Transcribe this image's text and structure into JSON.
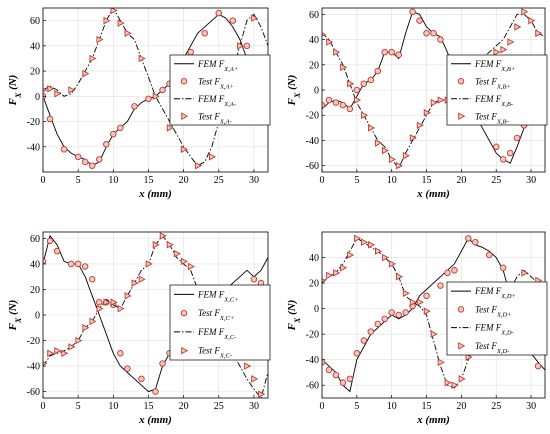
{
  "colors": {
    "line": "#000000",
    "marker": "#c0392b",
    "marker_fill": "#f4c7c3",
    "grid": "#e0e0e0"
  },
  "chart_data": [
    {
      "type": "line",
      "xlabel": "x (mm)",
      "ylabel": "F_X (N)",
      "xlim": [
        0,
        32
      ],
      "ylim": [
        -60,
        70
      ],
      "xticks": [
        0,
        5,
        10,
        15,
        20,
        25,
        30
      ],
      "yticks": [
        -40,
        -20,
        0,
        20,
        40,
        60
      ],
      "grid": true,
      "legend_position": "middle-right",
      "series": [
        {
          "name": "FEM F_X,A+",
          "marker": "none",
          "dash": "solid",
          "x": [
            0,
            1,
            2,
            3,
            4,
            5,
            6,
            7,
            8,
            9,
            10,
            11,
            12,
            13,
            14,
            15,
            16,
            17,
            18,
            19,
            20,
            21,
            22,
            23,
            24,
            25,
            26,
            27,
            28,
            29,
            30,
            31,
            32
          ],
          "y": [
            0,
            -15,
            -30,
            -40,
            -45,
            -48,
            -50,
            -55,
            -52,
            -40,
            -30,
            -25,
            -20,
            -10,
            -5,
            -2,
            0,
            5,
            10,
            15,
            30,
            40,
            50,
            55,
            60,
            65,
            62,
            55,
            45,
            30,
            20,
            10,
            -5
          ]
        },
        {
          "name": "Test F_X,A+",
          "marker": "circle",
          "dash": "none",
          "x": [
            0,
            1,
            3,
            5,
            6,
            7,
            8,
            9,
            10,
            11,
            13,
            15,
            17,
            18,
            19,
            21,
            23,
            25,
            27,
            29,
            31
          ],
          "y": [
            0,
            -18,
            -42,
            -48,
            -52,
            -55,
            -50,
            -38,
            -30,
            -25,
            -8,
            -2,
            5,
            10,
            15,
            35,
            50,
            66,
            60,
            40,
            10
          ]
        },
        {
          "name": "FEM F_X,A-",
          "marker": "none",
          "dash": "dashdot",
          "x": [
            0,
            1,
            2,
            3,
            4,
            5,
            6,
            7,
            8,
            9,
            10,
            11,
            12,
            13,
            14,
            15,
            16,
            17,
            18,
            19,
            20,
            21,
            22,
            23,
            24,
            25,
            26,
            27,
            28,
            29,
            30,
            31,
            32
          ],
          "y": [
            5,
            8,
            5,
            0,
            2,
            10,
            20,
            30,
            45,
            60,
            70,
            60,
            50,
            45,
            30,
            15,
            0,
            -10,
            -20,
            -30,
            -40,
            -48,
            -55,
            -52,
            -40,
            -20,
            0,
            20,
            40,
            60,
            65,
            55,
            40
          ]
        },
        {
          "name": "Test F_X,A-",
          "marker": "triangle",
          "dash": "none",
          "x": [
            0,
            1,
            2,
            4,
            6,
            7,
            8,
            9,
            10,
            11,
            12,
            14,
            16,
            18,
            20,
            22,
            24,
            26,
            28,
            30
          ],
          "y": [
            5,
            6,
            2,
            5,
            18,
            30,
            45,
            60,
            68,
            58,
            50,
            30,
            0,
            -25,
            -42,
            -55,
            -48,
            0,
            40,
            62
          ]
        }
      ]
    },
    {
      "type": "line",
      "xlabel": "x (mm)",
      "ylabel": "F_X (N)",
      "xlim": [
        0,
        32
      ],
      "ylim": [
        -65,
        65
      ],
      "xticks": [
        0,
        5,
        10,
        15,
        20,
        25,
        30
      ],
      "yticks": [
        -60,
        -40,
        -20,
        0,
        20,
        40,
        60
      ],
      "grid": true,
      "legend_position": "middle-right",
      "series": [
        {
          "name": "FEM F_X,B+",
          "marker": "none",
          "dash": "solid",
          "x": [
            0,
            1,
            2,
            3,
            4,
            5,
            6,
            7,
            8,
            9,
            10,
            11,
            12,
            13,
            14,
            15,
            16,
            17,
            18,
            19,
            20,
            21,
            22,
            23,
            24,
            25,
            26,
            27,
            28,
            29,
            30,
            31,
            32
          ],
          "y": [
            -15,
            -10,
            -8,
            -10,
            -15,
            -5,
            5,
            8,
            15,
            30,
            30,
            25,
            45,
            62,
            60,
            50,
            45,
            42,
            30,
            15,
            0,
            -10,
            -20,
            -30,
            -40,
            -50,
            -55,
            -58,
            -45,
            -30,
            -25,
            -25,
            -15
          ]
        },
        {
          "name": "Test F_X,B+",
          "marker": "circle",
          "dash": "none",
          "x": [
            0,
            1,
            2,
            3,
            4,
            5,
            6,
            7,
            8,
            9,
            10,
            11,
            13,
            14,
            15,
            16,
            17,
            19,
            21,
            23,
            25,
            26,
            27,
            28,
            29,
            30,
            31
          ],
          "y": [
            -12,
            -8,
            -10,
            -12,
            -15,
            0,
            5,
            8,
            15,
            30,
            30,
            28,
            62,
            55,
            45,
            45,
            40,
            20,
            -8,
            -25,
            -45,
            -55,
            -50,
            -38,
            -28,
            -25,
            -25
          ]
        },
        {
          "name": "FEM F_X,B-",
          "marker": "none",
          "dash": "dashdot",
          "x": [
            0,
            1,
            2,
            3,
            4,
            5,
            6,
            7,
            8,
            9,
            10,
            11,
            12,
            13,
            14,
            15,
            16,
            17,
            18,
            19,
            20,
            21,
            22,
            23,
            24,
            25,
            26,
            27,
            28,
            29,
            30,
            31,
            32
          ],
          "y": [
            45,
            40,
            30,
            20,
            5,
            -10,
            -20,
            -30,
            -40,
            -45,
            -55,
            -62,
            -50,
            -40,
            -30,
            -20,
            -10,
            -8,
            -8,
            -8,
            0,
            15,
            20,
            25,
            30,
            35,
            40,
            50,
            60,
            60,
            55,
            45,
            42
          ]
        },
        {
          "name": "Test F_X,B-",
          "marker": "triangle",
          "dash": "none",
          "x": [
            0,
            1,
            2,
            3,
            4,
            5,
            6,
            7,
            8,
            9,
            10,
            11,
            12,
            13,
            14,
            15,
            16,
            17,
            18,
            19,
            20,
            21,
            23,
            25,
            26,
            27,
            28,
            29,
            30,
            31
          ],
          "y": [
            44,
            38,
            30,
            18,
            5,
            -8,
            -20,
            -30,
            -42,
            -48,
            -55,
            -60,
            -52,
            -38,
            -28,
            -18,
            -10,
            -8,
            -8,
            -7,
            0,
            12,
            22,
            30,
            32,
            38,
            50,
            62,
            55,
            45
          ]
        }
      ]
    },
    {
      "type": "line",
      "xlabel": "x (mm)",
      "ylabel": "F_X (N)",
      "xlim": [
        0,
        32
      ],
      "ylim": [
        -65,
        65
      ],
      "xticks": [
        0,
        5,
        10,
        15,
        20,
        25,
        30
      ],
      "yticks": [
        -60,
        -40,
        -20,
        0,
        20,
        40,
        60
      ],
      "grid": true,
      "legend_position": "bottom-right",
      "series": [
        {
          "name": "FEM F_X,C+",
          "marker": "none",
          "dash": "solid",
          "x": [
            0,
            1,
            2,
            3,
            4,
            5,
            6,
            7,
            8,
            9,
            10,
            11,
            12,
            13,
            14,
            15,
            16,
            17,
            18,
            19,
            20,
            21,
            22,
            23,
            24,
            25,
            26,
            27,
            28,
            29,
            30,
            31,
            32
          ],
          "y": [
            40,
            62,
            55,
            42,
            40,
            40,
            30,
            15,
            0,
            -15,
            -30,
            -40,
            -45,
            -50,
            -55,
            -60,
            -58,
            -40,
            -30,
            -25,
            -20,
            -15,
            0,
            5,
            10,
            15,
            20,
            25,
            30,
            35,
            30,
            35,
            45
          ]
        },
        {
          "name": "Test F_X,C+",
          "marker": "circle",
          "dash": "none",
          "x": [
            0,
            1,
            2,
            4,
            5,
            6,
            7,
            8,
            9,
            10,
            11,
            12,
            14,
            16,
            17,
            18,
            20,
            22,
            24,
            26,
            28,
            30,
            31
          ],
          "y": [
            42,
            58,
            50,
            40,
            40,
            38,
            28,
            10,
            10,
            8,
            -30,
            -42,
            -50,
            -60,
            -38,
            -30,
            -20,
            -5,
            5,
            12,
            20,
            28,
            25
          ]
        },
        {
          "name": "FEM F_X,C-",
          "marker": "none",
          "dash": "dashdot",
          "x": [
            0,
            1,
            2,
            3,
            4,
            5,
            6,
            7,
            8,
            9,
            10,
            11,
            12,
            13,
            14,
            15,
            16,
            17,
            18,
            19,
            20,
            21,
            22,
            23,
            24,
            25,
            26,
            27,
            28,
            29,
            30,
            31,
            32
          ],
          "y": [
            -40,
            -32,
            -30,
            -28,
            -25,
            -20,
            -10,
            -5,
            5,
            12,
            8,
            5,
            15,
            25,
            35,
            40,
            55,
            62,
            55,
            45,
            40,
            35,
            20,
            10,
            0,
            -10,
            -20,
            -30,
            -40,
            -50,
            -58,
            -65,
            -45
          ]
        },
        {
          "name": "Test F_X,C-",
          "marker": "triangle",
          "dash": "none",
          "x": [
            0,
            1,
            2,
            3,
            4,
            5,
            6,
            7,
            8,
            9,
            10,
            11,
            12,
            13,
            14,
            15,
            16,
            17,
            18,
            19,
            20,
            21,
            23,
            25,
            27,
            29,
            30,
            31
          ],
          "y": [
            -38,
            -30,
            -28,
            -30,
            -25,
            -20,
            -10,
            -5,
            5,
            10,
            10,
            5,
            15,
            25,
            28,
            40,
            55,
            62,
            55,
            48,
            42,
            38,
            15,
            -8,
            -25,
            -40,
            -50,
            -62
          ]
        }
      ]
    },
    {
      "type": "line",
      "xlabel": "x (mm)",
      "ylabel": "F_X (N)",
      "xlim": [
        0,
        32
      ],
      "ylim": [
        -70,
        60
      ],
      "xticks": [
        0,
        5,
        10,
        15,
        20,
        25,
        30
      ],
      "yticks": [
        -60,
        -40,
        -20,
        0,
        20,
        40
      ],
      "grid": true,
      "legend_position": "middle-right",
      "series": [
        {
          "name": "FEM F_X,D+",
          "marker": "none",
          "dash": "solid",
          "x": [
            0,
            1,
            2,
            3,
            4,
            5,
            6,
            7,
            8,
            9,
            10,
            11,
            12,
            13,
            14,
            15,
            16,
            17,
            18,
            19,
            20,
            21,
            22,
            23,
            24,
            25,
            26,
            27,
            28,
            29,
            30,
            31,
            32
          ],
          "y": [
            -40,
            -45,
            -50,
            -60,
            -65,
            -40,
            -30,
            -20,
            -15,
            -10,
            -5,
            -8,
            -5,
            0,
            10,
            15,
            20,
            25,
            30,
            35,
            45,
            55,
            50,
            48,
            45,
            40,
            30,
            10,
            -10,
            -25,
            -35,
            -42,
            -48
          ]
        },
        {
          "name": "Test F_X,D+",
          "marker": "circle",
          "dash": "none",
          "x": [
            0,
            1,
            2,
            3,
            4,
            5,
            6,
            7,
            8,
            9,
            10,
            11,
            12,
            13,
            15,
            17,
            18,
            19,
            21,
            22,
            24,
            26,
            28,
            30,
            31
          ],
          "y": [
            -42,
            -48,
            -52,
            -58,
            -55,
            -35,
            -25,
            -18,
            -12,
            -8,
            -3,
            -5,
            -3,
            2,
            10,
            18,
            28,
            30,
            55,
            52,
            42,
            32,
            -8,
            -30,
            -45
          ]
        },
        {
          "name": "FEM F_X,D-",
          "marker": "none",
          "dash": "dashdot",
          "x": [
            0,
            1,
            2,
            3,
            4,
            5,
            6,
            7,
            8,
            9,
            10,
            11,
            12,
            13,
            14,
            15,
            16,
            17,
            18,
            19,
            20,
            21,
            22,
            23,
            24,
            25,
            26,
            27,
            28,
            29,
            30,
            31,
            32
          ],
          "y": [
            20,
            25,
            28,
            35,
            45,
            55,
            52,
            48,
            45,
            40,
            35,
            25,
            10,
            5,
            2,
            -5,
            -25,
            -45,
            -60,
            -62,
            -55,
            -40,
            -30,
            -20,
            -10,
            -2,
            5,
            15,
            25,
            30,
            25,
            20,
            18
          ]
        },
        {
          "name": "Test F_X,D-",
          "marker": "triangle",
          "dash": "none",
          "x": [
            0,
            1,
            2,
            3,
            4,
            5,
            6,
            7,
            8,
            9,
            10,
            11,
            12,
            13,
            14,
            15,
            16,
            17,
            18,
            19,
            20,
            21,
            23,
            25,
            27,
            29,
            31
          ],
          "y": [
            22,
            26,
            28,
            32,
            42,
            55,
            52,
            50,
            45,
            40,
            35,
            25,
            12,
            5,
            5,
            -2,
            -20,
            -42,
            -58,
            -60,
            -55,
            -38,
            -18,
            -5,
            12,
            28,
            22
          ]
        }
      ]
    }
  ]
}
